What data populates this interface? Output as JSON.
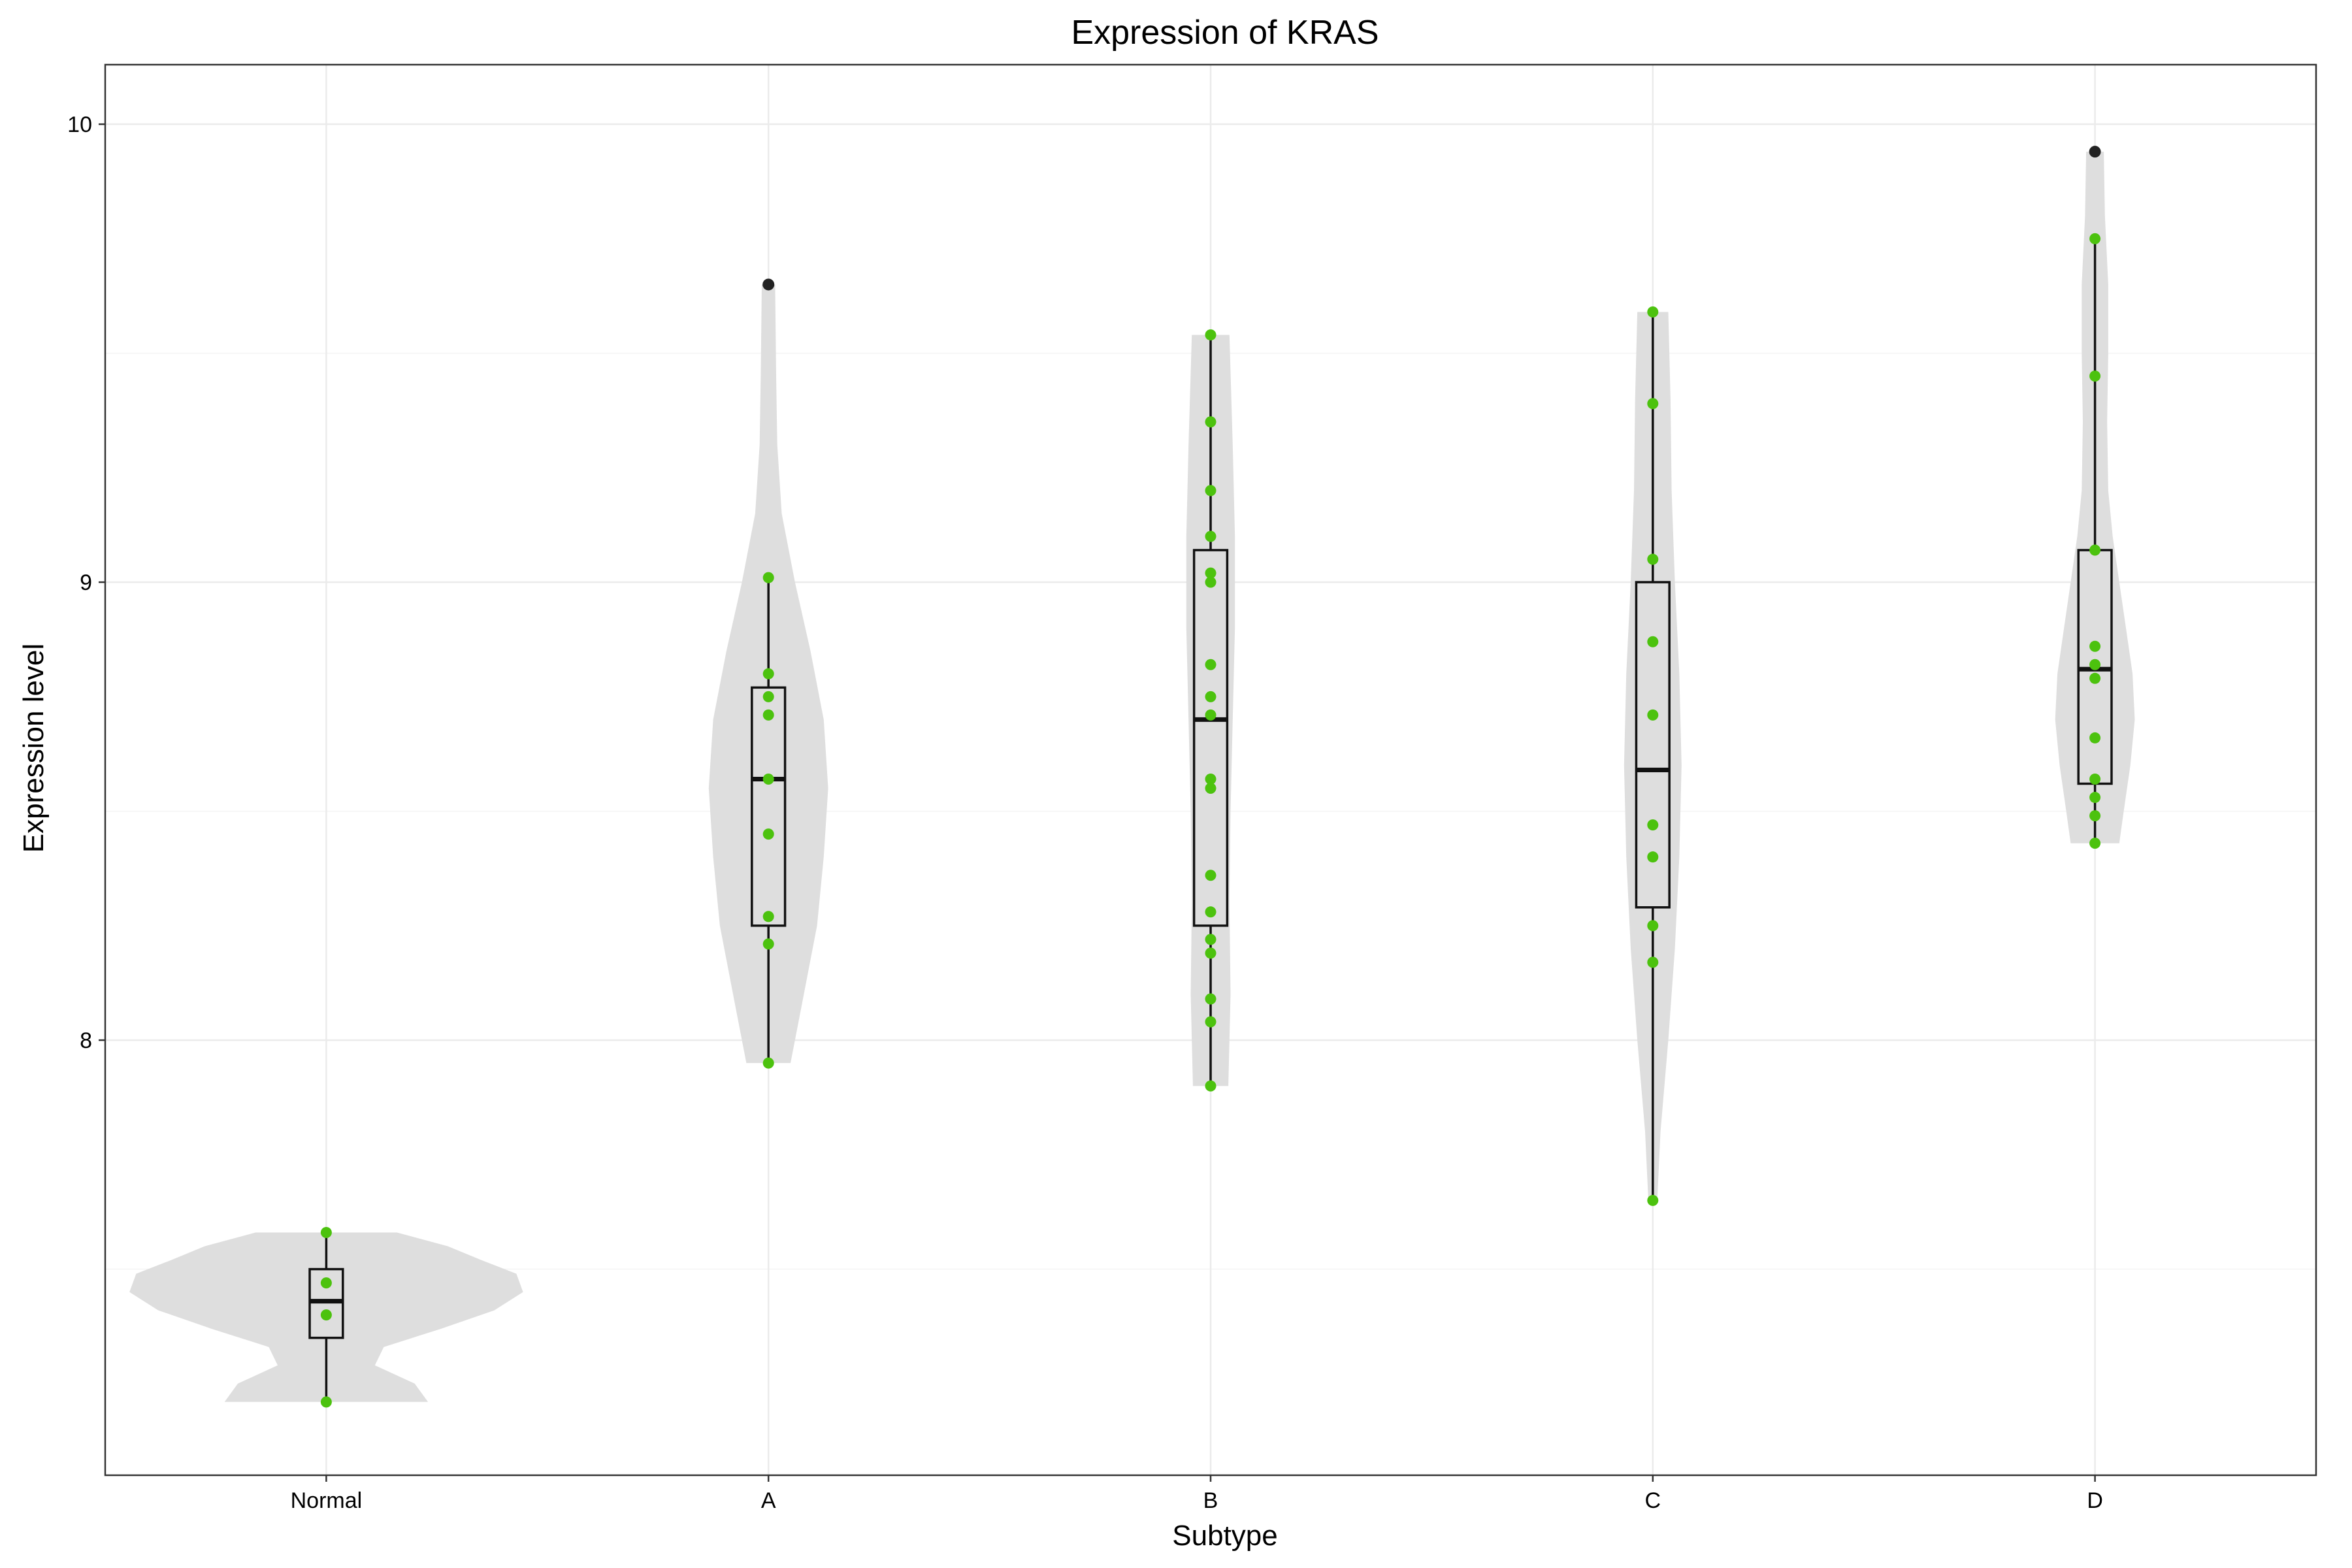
{
  "chart_data": {
    "type": "violin",
    "title": "Expression of KRAS",
    "xlabel": "Subtype",
    "ylabel": "Expression level",
    "ylim": [
      7.05,
      10.13
    ],
    "yticks": [
      8,
      9,
      10
    ],
    "grid": true,
    "colors": {
      "violin": "#dedede",
      "point": "#4cc20e",
      "outlier": "#222222",
      "box": "#111111"
    },
    "categories": [
      "Normal",
      "A",
      "B",
      "C",
      "D"
    ],
    "groups": [
      {
        "name": "Normal",
        "points": [
          7.58,
          7.47,
          7.4,
          7.21
        ],
        "box": {
          "q1": 7.35,
          "median": 7.43,
          "q3": 7.5,
          "whisker_low": 7.21,
          "whisker_high": 7.58
        },
        "outliers": [],
        "violin_width": 0.89,
        "density": [
          [
            7.21,
            0.46
          ],
          [
            7.25,
            0.4
          ],
          [
            7.29,
            0.22
          ],
          [
            7.33,
            0.26
          ],
          [
            7.37,
            0.52
          ],
          [
            7.41,
            0.76
          ],
          [
            7.45,
            0.89
          ],
          [
            7.49,
            0.86
          ],
          [
            7.52,
            0.7
          ],
          [
            7.55,
            0.55
          ],
          [
            7.58,
            0.32
          ]
        ]
      },
      {
        "name": "A",
        "points": [
          9.01,
          8.8,
          8.75,
          8.71,
          8.57,
          8.45,
          8.27,
          8.21,
          7.95
        ],
        "box": {
          "q1": 8.25,
          "median": 8.57,
          "q3": 8.77,
          "whisker_low": 7.95,
          "whisker_high": 9.01
        },
        "outliers": [
          9.65
        ],
        "violin_width": 0.27,
        "density": [
          [
            7.95,
            0.1
          ],
          [
            8.05,
            0.14
          ],
          [
            8.15,
            0.18
          ],
          [
            8.25,
            0.22
          ],
          [
            8.4,
            0.25
          ],
          [
            8.55,
            0.27
          ],
          [
            8.7,
            0.25
          ],
          [
            8.85,
            0.19
          ],
          [
            9.0,
            0.12
          ],
          [
            9.15,
            0.06
          ],
          [
            9.3,
            0.04
          ],
          [
            9.45,
            0.035
          ],
          [
            9.65,
            0.03
          ]
        ]
      },
      {
        "name": "B",
        "points": [
          9.54,
          9.35,
          9.2,
          9.1,
          9.02,
          9.0,
          8.82,
          8.75,
          8.71,
          8.57,
          8.55,
          8.36,
          8.28,
          8.22,
          8.19,
          8.09,
          8.04,
          7.9
        ],
        "box": {
          "q1": 8.25,
          "median": 8.7,
          "q3": 9.07,
          "whisker_low": 7.9,
          "whisker_high": 9.54
        },
        "outliers": [],
        "violin_width": 0.12,
        "density": [
          [
            7.9,
            0.08
          ],
          [
            8.1,
            0.09
          ],
          [
            8.3,
            0.085
          ],
          [
            8.5,
            0.09
          ],
          [
            8.7,
            0.1
          ],
          [
            8.9,
            0.11
          ],
          [
            9.1,
            0.11
          ],
          [
            9.3,
            0.1
          ],
          [
            9.54,
            0.085
          ]
        ]
      },
      {
        "name": "C",
        "points": [
          9.59,
          9.39,
          9.05,
          8.87,
          8.71,
          8.47,
          8.4,
          8.25,
          8.17,
          7.65
        ],
        "box": {
          "q1": 8.29,
          "median": 8.59,
          "q3": 9.0,
          "whisker_low": 7.65,
          "whisker_high": 9.59
        },
        "outliers": [],
        "violin_width": 0.14,
        "density": [
          [
            7.65,
            0.02
          ],
          [
            7.8,
            0.035
          ],
          [
            8.0,
            0.07
          ],
          [
            8.2,
            0.1
          ],
          [
            8.4,
            0.12
          ],
          [
            8.6,
            0.13
          ],
          [
            8.8,
            0.12
          ],
          [
            9.0,
            0.1
          ],
          [
            9.2,
            0.085
          ],
          [
            9.4,
            0.08
          ],
          [
            9.59,
            0.07
          ]
        ]
      },
      {
        "name": "D",
        "points": [
          9.75,
          9.45,
          9.07,
          8.86,
          8.82,
          8.79,
          8.66,
          8.57,
          8.53,
          8.49,
          8.43
        ],
        "box": {
          "q1": 8.56,
          "median": 8.81,
          "q3": 9.07,
          "whisker_low": 8.43,
          "whisker_high": 9.75
        },
        "outliers": [
          9.94
        ],
        "violin_width": 0.18,
        "density": [
          [
            8.43,
            0.11
          ],
          [
            8.5,
            0.13
          ],
          [
            8.6,
            0.16
          ],
          [
            8.7,
            0.18
          ],
          [
            8.8,
            0.17
          ],
          [
            8.9,
            0.14
          ],
          [
            9.0,
            0.11
          ],
          [
            9.1,
            0.08
          ],
          [
            9.2,
            0.06
          ],
          [
            9.35,
            0.055
          ],
          [
            9.5,
            0.06
          ],
          [
            9.65,
            0.06
          ],
          [
            9.8,
            0.045
          ],
          [
            9.94,
            0.04
          ]
        ]
      }
    ]
  }
}
